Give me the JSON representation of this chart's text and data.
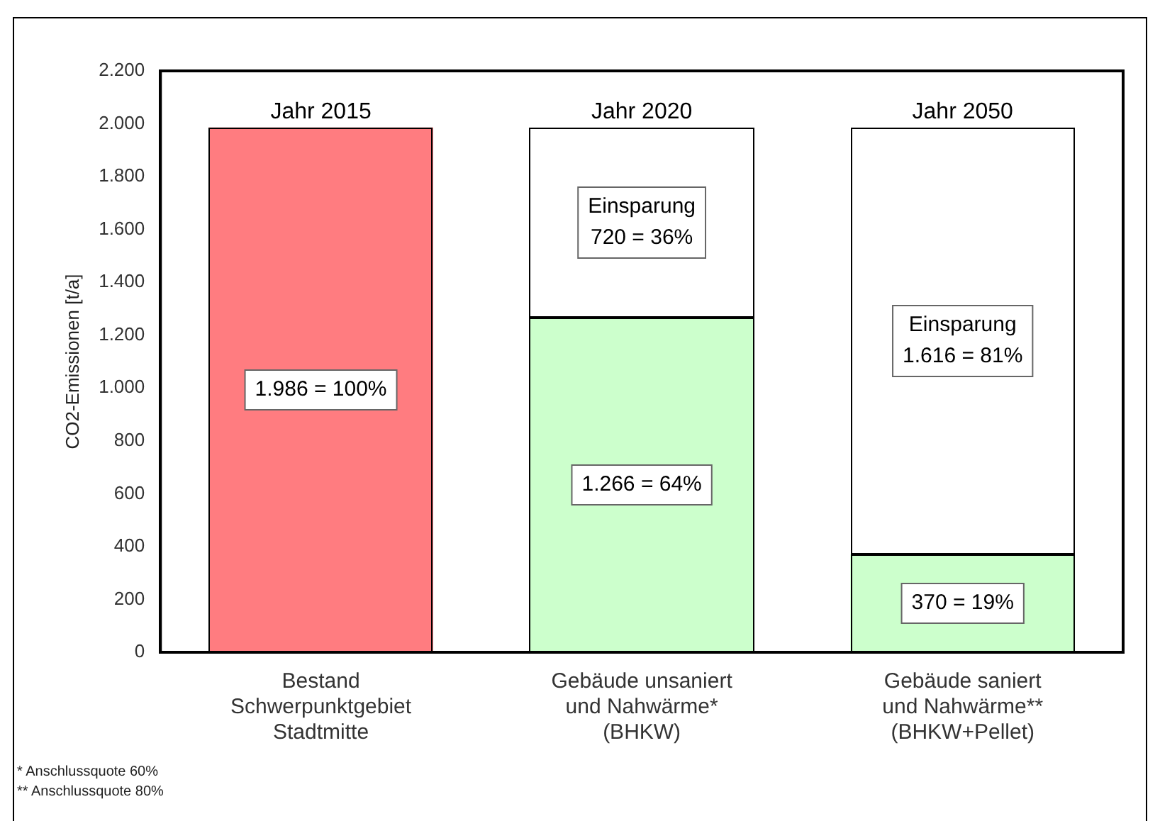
{
  "chart_data": {
    "type": "bar",
    "stacked": true,
    "ylabel": "CO2-Emissionen [t/a]",
    "categories": [
      "Bestand Schwerpunktgebiet Stadtmitte",
      "Gebäude unsaniert und Nahwärme* (BHKW)",
      "Gebäude saniert und Nahwärme** (BHKW+Pellet)"
    ],
    "series": [
      {
        "colors": [
          "#ff7c80",
          "#ccffcc",
          "#ccffcc"
        ],
        "values": [
          1986,
          1266,
          370
        ],
        "value_labels": [
          "1.986 = 100%",
          "1.266 = 64%",
          "370 = 19%"
        ]
      },
      {
        "color": "#ffffff",
        "values": [
          null,
          720,
          1616
        ],
        "value_labels": [
          null,
          "Einsparung\n720 = 36%",
          "Einsparung\n1.616 = 81%"
        ]
      }
    ],
    "ylim": [
      0,
      2200
    ],
    "yticks": [
      {
        "value": 0,
        "label": "0"
      },
      {
        "value": 200,
        "label": "200"
      },
      {
        "value": 400,
        "label": "400"
      },
      {
        "value": 600,
        "label": "600"
      },
      {
        "value": 800,
        "label": "800"
      },
      {
        "value": 1000,
        "label": "1.000"
      },
      {
        "value": 1200,
        "label": "1.200"
      },
      {
        "value": 1400,
        "label": "1.400"
      },
      {
        "value": 1600,
        "label": "1.600"
      },
      {
        "value": 1800,
        "label": "1.800"
      },
      {
        "value": 2000,
        "label": "2.000"
      },
      {
        "value": 2200,
        "label": "2.200"
      }
    ],
    "grid": false,
    "legend": false,
    "annotations": [
      {
        "text": "Jahr 2015",
        "x": "Bestand Schwerpunktgebiet Stadtmitte",
        "y": 1986
      },
      {
        "text": "Jahr 2020",
        "x": "Gebäude unsaniert und Nahwärme* (BHKW)",
        "y": 1986
      },
      {
        "text": "Jahr 2050",
        "x": "Gebäude saniert und Nahwärme** (BHKW+Pellet)",
        "y": 1986
      },
      "* Anschlussquote 60%",
      "** Anschlussquote 80%"
    ]
  }
}
